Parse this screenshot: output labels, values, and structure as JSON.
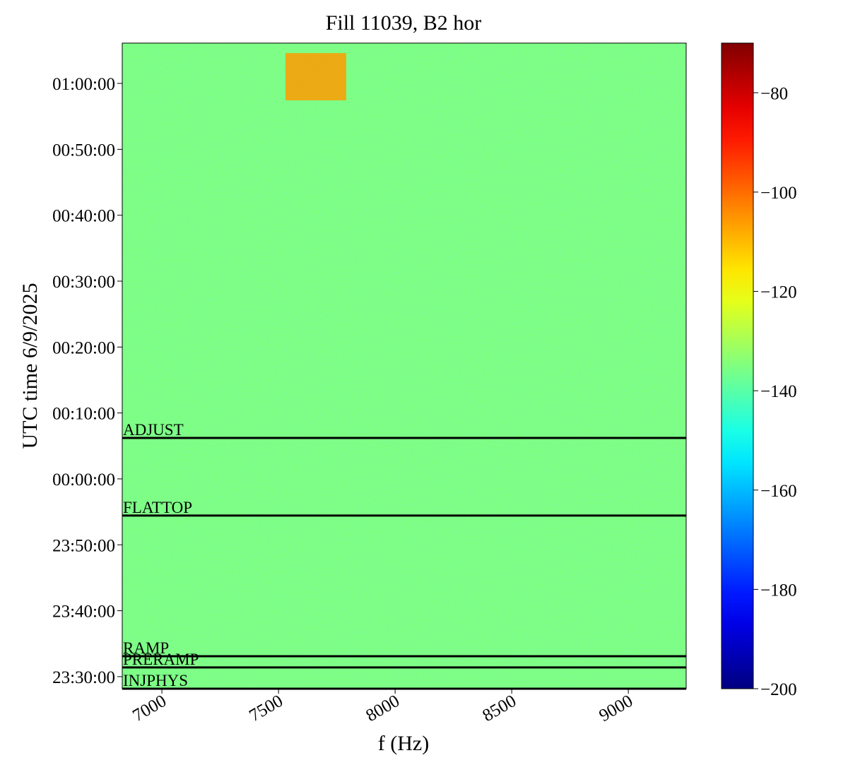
{
  "chart_data": {
    "type": "spectrogram",
    "title": "Fill 11039, B2 hor",
    "xlabel": "f (Hz)",
    "ylabel": "UTC time 6/9/2025",
    "xlim": [
      6830,
      9248
    ],
    "xticks": [
      7000,
      7500,
      8000,
      8500,
      9000
    ],
    "ylim": [
      "23:28:10",
      "01:06:07"
    ],
    "yticks": [
      "23:30:00",
      "23:40:00",
      "23:50:00",
      "00:00:00",
      "00:10:00",
      "00:20:00",
      "00:30:00",
      "00:40:00",
      "00:50:00",
      "01:00:00"
    ],
    "background": -135,
    "features": [
      {
        "x": [
          7530,
          7790
        ],
        "y": [
          "00:57:26",
          "01:04:36"
        ],
        "value": -106
      }
    ],
    "phases": [
      {
        "label": "ADJUST",
        "time": "00:06:13"
      },
      {
        "label": "FLATTOP",
        "time": "23:54:26"
      },
      {
        "label": "RAMP",
        "time": "23:33:06"
      },
      {
        "label": "PRERAMP",
        "time": "23:31:24"
      },
      {
        "label": "INJPHYS",
        "time": "23:28:10"
      }
    ],
    "colorbar": {
      "colormap": "jet",
      "lim": [
        -200,
        -70
      ],
      "ticks": [
        {
          "value": -200,
          "label": "−200"
        },
        {
          "value": -180,
          "label": "−180"
        },
        {
          "value": -160,
          "label": "−160"
        },
        {
          "value": -140,
          "label": "−140"
        },
        {
          "value": -120,
          "label": "−120"
        },
        {
          "value": -100,
          "label": "−100"
        },
        {
          "value": -80,
          "label": "−80"
        }
      ]
    }
  }
}
